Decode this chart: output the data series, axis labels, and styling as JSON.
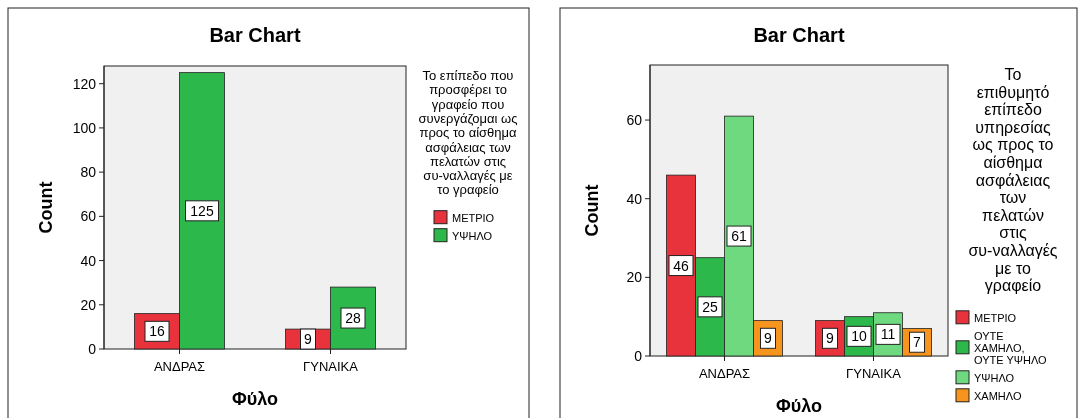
{
  "chart_data": [
    {
      "type": "bar",
      "title": "Bar Chart",
      "xlabel": "Φύλο",
      "ylabel": "Count",
      "legend_title": "Το επίπεδο που προσφέρει το γραφείο που συνεργάζομαι ως προς το αίσθημα ασφάλειας των πελατών στις συ-ναλλαγές με το γραφείο",
      "categories": [
        "ΑΝΔΡΑΣ",
        "ΓΥΝΑΙΚΑ"
      ],
      "series": [
        {
          "name": "ΜΕΤΡΙΟ",
          "color": "#e8333c",
          "values": [
            16,
            9
          ]
        },
        {
          "name": "ΥΨΗΛΟ",
          "color": "#2db84b",
          "values": [
            125,
            28
          ]
        }
      ],
      "ylim": [
        0,
        128
      ],
      "yticks": [
        0,
        20,
        40,
        60,
        80,
        100,
        120
      ],
      "data_labels": true,
      "legend": "right",
      "grid": false
    },
    {
      "type": "bar",
      "title": "Bar Chart",
      "xlabel": "Φύλο",
      "ylabel": "Count",
      "legend_title": "Το επιθυμητό επίπεδο υπηρεσίας ως προς το αίσθημα ασφάλειας των πελατών στις συ-ναλλαγές με το γραφείο",
      "categories": [
        "ΑΝΔΡΑΣ",
        "ΓΥΝΑΙΚΑ"
      ],
      "series": [
        {
          "name": "ΜΕΤΡΙΟ",
          "color": "#e8333c",
          "values": [
            46,
            9
          ]
        },
        {
          "name": "ΟΥΤΕ ΧΑΜΗΛΟ, ΟΥΤΕ ΥΨΗΛΟ",
          "color": "#2db84b",
          "values": [
            25,
            10
          ]
        },
        {
          "name": "ΥΨΗΛΟ",
          "color": "#6fd97f",
          "values": [
            61,
            11
          ]
        },
        {
          "name": "ΧΑΜΗΛΟ",
          "color": "#f7941d",
          "values": [
            9,
            7
          ]
        }
      ],
      "ylim": [
        0,
        74
      ],
      "yticks": [
        0,
        20,
        40,
        60
      ],
      "data_labels": true,
      "legend": "right",
      "grid": false
    }
  ]
}
